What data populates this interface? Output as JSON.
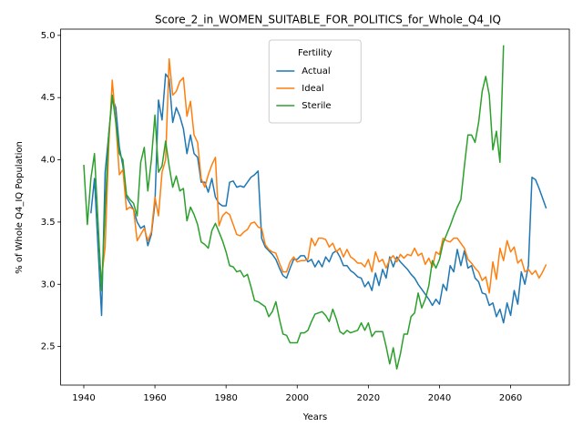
{
  "chart_data": {
    "type": "line",
    "title": "Score_2_in_WOMEN_SUITABLE_FOR_POLITICS_for_Whole_Q4_IQ",
    "x_label": "Years",
    "y_label": "% of Whole Q4_IQ Population",
    "legend_title": "Fertility",
    "legend": "upper center",
    "grid": false,
    "xlim": [
      1933.5,
      2076.5
    ],
    "ylim": [
      2.19,
      5.05
    ],
    "xticks": [
      1940,
      1960,
      1980,
      2000,
      2020,
      2040,
      2060
    ],
    "yticks": [
      2.5,
      {
        "value": 3,
        "label": "3.0"
      },
      3.5,
      {
        "value": 4,
        "label": "4.0"
      },
      4.5,
      {
        "value": 5,
        "label": "5.0"
      }
    ],
    "x": [
      1940,
      1941,
      1942,
      1943,
      1944,
      1945,
      1946,
      1947,
      1948,
      1949,
      1950,
      1951,
      1952,
      1953,
      1954,
      1955,
      1956,
      1957,
      1958,
      1959,
      1960,
      1961,
      1962,
      1963,
      1964,
      1965,
      1966,
      1967,
      1968,
      1969,
      1970,
      1971,
      1972,
      1973,
      1974,
      1975,
      1976,
      1977,
      1978,
      1979,
      1980,
      1981,
      1982,
      1983,
      1984,
      1985,
      1986,
      1987,
      1988,
      1989,
      1990,
      1991,
      1992,
      1993,
      1994,
      1995,
      1996,
      1997,
      1998,
      1999,
      2000,
      2001,
      2002,
      2003,
      2004,
      2005,
      2006,
      2007,
      2008,
      2009,
      2010,
      2011,
      2012,
      2013,
      2014,
      2015,
      2016,
      2017,
      2018,
      2019,
      2020,
      2021,
      2022,
      2023,
      2024,
      2025,
      2026,
      2027,
      2028,
      2029,
      2030,
      2031,
      2032,
      2033,
      2034,
      2035,
      2036,
      2037,
      2038,
      2039,
      2040,
      2041,
      2042,
      2043,
      2044,
      2045,
      2046,
      2047,
      2048,
      2049,
      2050,
      2051,
      2052,
      2053,
      2054,
      2055,
      2056,
      2057,
      2058,
      2059,
      2060,
      2061,
      2062,
      2063,
      2064,
      2065,
      2066,
      2067,
      2068,
      2069,
      2070
    ],
    "series": [
      {
        "name": "Actual",
        "color": "#1f77b4",
        "values": [
          null,
          null,
          3.57,
          3.85,
          3.3,
          2.75,
          3.9,
          4.2,
          4.5,
          4.42,
          4.1,
          3.95,
          3.7,
          3.65,
          3.6,
          3.5,
          3.45,
          3.47,
          3.31,
          3.4,
          3.65,
          4.48,
          4.32,
          4.69,
          4.65,
          4.3,
          4.42,
          4.35,
          4.25,
          4.05,
          4.2,
          4.05,
          4.02,
          3.82,
          3.82,
          3.74,
          3.85,
          3.7,
          3.65,
          3.63,
          3.63,
          3.82,
          3.83,
          3.78,
          3.79,
          3.78,
          3.82,
          3.86,
          3.88,
          3.91,
          3.37,
          3.3,
          3.27,
          3.24,
          3.2,
          3.13,
          3.07,
          3.05,
          3.13,
          3.2,
          3.2,
          3.23,
          3.23,
          3.18,
          3.2,
          3.14,
          3.19,
          3.14,
          3.22,
          3.18,
          3.25,
          3.27,
          3.22,
          3.15,
          3.15,
          3.11,
          3.09,
          3.06,
          3.05,
          2.98,
          3.02,
          2.95,
          3.09,
          2.99,
          3.12,
          3.05,
          3.22,
          3.14,
          3.22,
          3.18,
          3.15,
          3.12,
          3.08,
          3.05,
          3.0,
          2.96,
          2.92,
          2.88,
          2.83,
          2.88,
          2.84,
          3.0,
          2.95,
          3.15,
          3.1,
          3.28,
          3.15,
          3.27,
          3.13,
          3.15,
          3.05,
          3.02,
          2.93,
          2.92,
          2.83,
          2.85,
          2.74,
          2.8,
          2.69,
          2.85,
          2.75,
          2.95,
          2.84,
          3.1,
          3.0,
          3.15,
          3.86,
          3.84,
          3.77,
          3.69,
          3.61
        ]
      },
      {
        "name": "Ideal",
        "color": "#ff7f0e",
        "values": [
          null,
          null,
          null,
          null,
          null,
          3.05,
          3.3,
          4.1,
          4.64,
          4.3,
          3.88,
          3.92,
          3.6,
          3.62,
          3.6,
          3.35,
          3.4,
          3.45,
          3.35,
          3.42,
          3.7,
          3.55,
          3.9,
          4.0,
          4.81,
          4.52,
          4.55,
          4.63,
          4.66,
          4.35,
          4.47,
          4.2,
          4.14,
          3.85,
          3.78,
          3.88,
          3.96,
          4.02,
          3.47,
          3.55,
          3.58,
          3.56,
          3.48,
          3.4,
          3.39,
          3.42,
          3.44,
          3.49,
          3.5,
          3.46,
          3.45,
          3.32,
          3.28,
          3.26,
          3.25,
          3.17,
          3.1,
          3.1,
          3.18,
          3.22,
          3.18,
          3.19,
          3.19,
          3.2,
          3.37,
          3.31,
          3.37,
          3.37,
          3.36,
          3.3,
          3.33,
          3.26,
          3.29,
          3.22,
          3.28,
          3.22,
          3.2,
          3.17,
          3.17,
          3.14,
          3.2,
          3.1,
          3.26,
          3.18,
          3.2,
          3.13,
          3.2,
          3.23,
          3.18,
          3.24,
          3.21,
          3.24,
          3.23,
          3.29,
          3.23,
          3.25,
          3.16,
          3.21,
          3.14,
          3.26,
          3.24,
          3.37,
          3.35,
          3.34,
          3.37,
          3.37,
          3.33,
          3.29,
          3.2,
          3.17,
          3.13,
          3.1,
          3.03,
          3.06,
          2.93,
          3.18,
          3.04,
          3.29,
          3.19,
          3.35,
          3.26,
          3.3,
          3.17,
          3.2,
          3.1,
          3.12,
          3.08,
          3.11,
          3.05,
          3.1,
          3.16
        ]
      },
      {
        "name": "Sterile",
        "color": "#2ca02c",
        "values": [
          3.96,
          3.48,
          3.85,
          4.05,
          3.5,
          2.95,
          3.6,
          4.2,
          4.52,
          4.3,
          4.05,
          4.0,
          3.72,
          3.68,
          3.65,
          3.55,
          3.98,
          4.1,
          3.75,
          4.0,
          4.36,
          3.9,
          3.95,
          4.15,
          3.95,
          3.78,
          3.87,
          3.75,
          3.77,
          3.51,
          3.62,
          3.56,
          3.48,
          3.34,
          3.32,
          3.29,
          3.43,
          3.49,
          3.42,
          3.35,
          3.26,
          3.15,
          3.14,
          3.1,
          3.11,
          3.06,
          3.08,
          2.98,
          2.87,
          2.86,
          2.84,
          2.82,
          2.74,
          2.78,
          2.86,
          2.72,
          2.6,
          2.59,
          2.53,
          2.53,
          2.53,
          2.61,
          2.61,
          2.63,
          2.7,
          2.76,
          2.77,
          2.78,
          2.75,
          2.7,
          2.8,
          2.72,
          2.62,
          2.6,
          2.63,
          2.61,
          2.62,
          2.63,
          2.69,
          2.63,
          2.69,
          2.58,
          2.62,
          2.62,
          2.62,
          2.5,
          2.36,
          2.49,
          2.32,
          2.44,
          2.6,
          2.6,
          2.74,
          2.77,
          2.93,
          2.81,
          2.88,
          2.99,
          3.19,
          3.13,
          3.2,
          3.33,
          3.4,
          3.47,
          3.55,
          3.62,
          3.68,
          3.95,
          4.2,
          4.2,
          4.14,
          4.3,
          4.55,
          4.67,
          4.52,
          4.08,
          4.23,
          3.98,
          4.92,
          null,
          null,
          null,
          null,
          null,
          null,
          null,
          null,
          null,
          null,
          null,
          null
        ]
      }
    ]
  }
}
